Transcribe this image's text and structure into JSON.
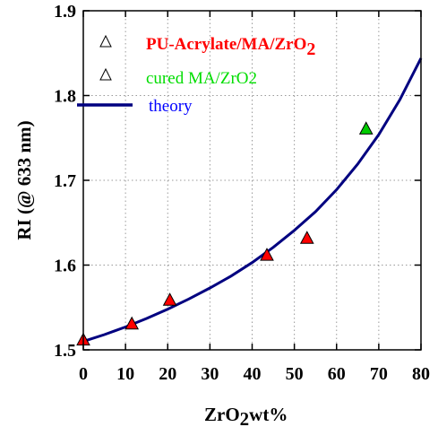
{
  "chart_data": {
    "type": "scatter",
    "xlabel": "ZrO",
    "xlabel_sub": "2",
    "xlabel_tail": "wt%",
    "ylabel": "RI (@ 633 nm)",
    "xlim": [
      0,
      80
    ],
    "ylim": [
      1.5,
      1.9
    ],
    "xticks": [
      "0",
      "10",
      "20",
      "30",
      "40",
      "50",
      "60",
      "70",
      "80"
    ],
    "yticks": [
      "1.5",
      "1.6",
      "1.7",
      "1.8",
      "1.9"
    ],
    "grid": true,
    "legend_position": "top-left",
    "series": [
      {
        "name": "PU-Acrylate/MA/ZrO",
        "name_sub": "2",
        "marker": "triangle",
        "color": "#ff0000",
        "label_color": "#ff0000",
        "x": [
          0,
          11.5,
          20.5,
          43.5,
          53
        ],
        "y": [
          1.512,
          1.531,
          1.559,
          1.612,
          1.632
        ]
      },
      {
        "name": "cured MA/ZrO2",
        "marker": "triangle",
        "color": "#00cc00",
        "label_color": "#00dd00",
        "x": [
          67
        ],
        "y": [
          1.761
        ]
      },
      {
        "name": "theory",
        "type": "line",
        "color": "#000080",
        "label_color": "#0000ff",
        "x": [
          0,
          5,
          10,
          15,
          20,
          25,
          30,
          35,
          40,
          45,
          50,
          55,
          60,
          65,
          70,
          75,
          80
        ],
        "y": [
          1.51,
          1.518,
          1.527,
          1.537,
          1.548,
          1.56,
          1.573,
          1.587,
          1.603,
          1.621,
          1.641,
          1.663,
          1.689,
          1.719,
          1.754,
          1.795,
          1.844
        ]
      }
    ]
  }
}
